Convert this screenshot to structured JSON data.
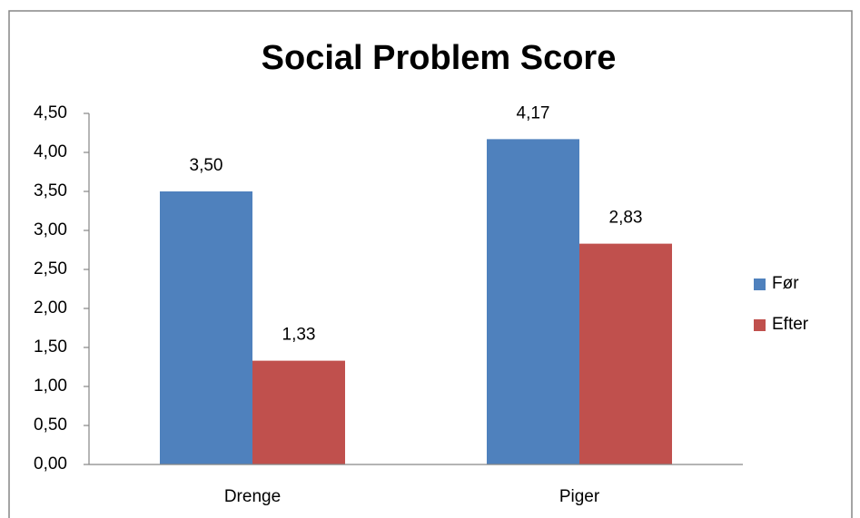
{
  "chart_data": {
    "type": "bar",
    "title": "Social Problem Score",
    "categories": [
      "Drenge",
      "Piger"
    ],
    "series": [
      {
        "name": "Før",
        "color": "#4f81bd",
        "values": [
          3.5,
          4.17
        ],
        "value_labels": [
          "3,50",
          "4,17"
        ]
      },
      {
        "name": "Efter",
        "color": "#c0504d",
        "values": [
          1.33,
          2.83
        ],
        "value_labels": [
          "1,33",
          "2,83"
        ]
      }
    ],
    "ylim": [
      0,
      4.5
    ],
    "yticks": [
      {
        "value": 0,
        "label": "0,00"
      },
      {
        "value": 0.5,
        "label": "0,50"
      },
      {
        "value": 1,
        "label": "1,00"
      },
      {
        "value": 1.5,
        "label": "1,50"
      },
      {
        "value": 2,
        "label": "2,00"
      },
      {
        "value": 2.5,
        "label": "2,50"
      },
      {
        "value": 3,
        "label": "3,00"
      },
      {
        "value": 3.5,
        "label": "3,50"
      },
      {
        "value": 4,
        "label": "4,00"
      },
      {
        "value": 4.5,
        "label": "4,50"
      }
    ],
    "grid": false,
    "legend": "right"
  }
}
